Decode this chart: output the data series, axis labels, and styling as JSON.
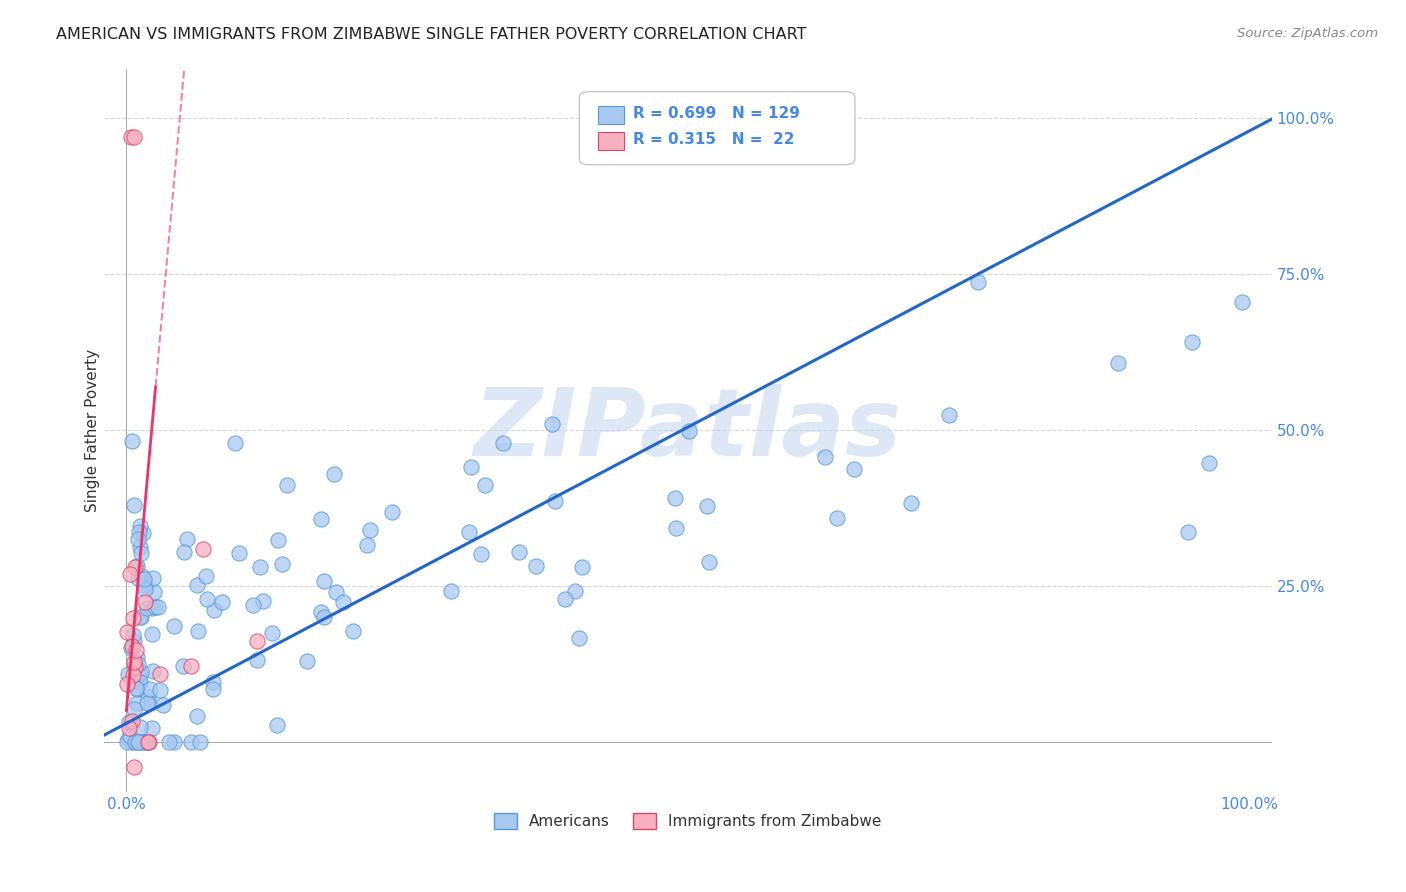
{
  "title": "AMERICAN VS IMMIGRANTS FROM ZIMBABWE SINGLE FATHER POVERTY CORRELATION CHART",
  "source": "Source: ZipAtlas.com",
  "ylabel": "Single Father Poverty",
  "legend_labels": [
    "Americans",
    "Immigrants from Zimbabwe"
  ],
  "r_american": 0.699,
  "n_american": 129,
  "r_zimbabwe": 0.315,
  "n_zimbabwe": 22,
  "american_color": "#a8c8f0",
  "american_edge_color": "#5599dd",
  "zimbabwe_color": "#f8b0c0",
  "zimbabwe_edge_color": "#dd4466",
  "trend_american_color": "#2266cc",
  "trend_zimbabwe_color": "#ee3366",
  "background_color": "#ffffff",
  "grid_color": "#cccccc",
  "title_color": "#222222",
  "right_tick_color": "#4488ee",
  "bottom_tick_color": "#4488ee",
  "watermark_color": "#c8d8f0",
  "watermark_text": "ZIPatlas"
}
